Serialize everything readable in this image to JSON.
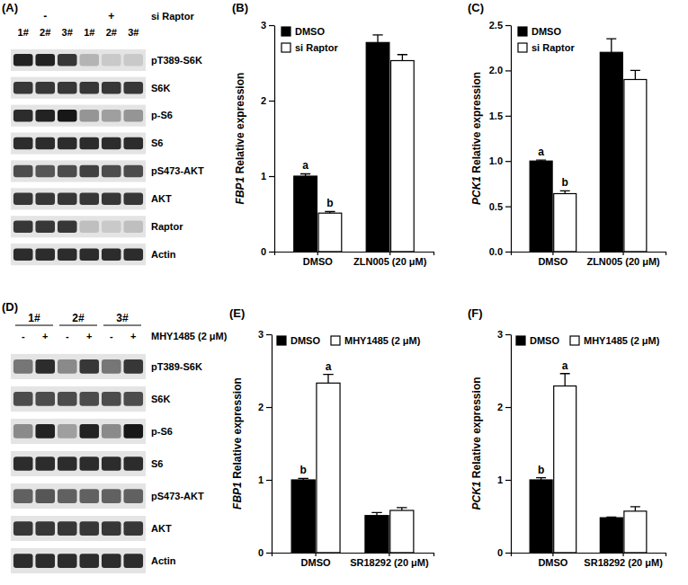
{
  "chart_data": [
    {
      "type": "western_blot",
      "title": "(A)",
      "treatment": "si Raptor",
      "groups": [
        "-",
        "+"
      ],
      "lanes": [
        "1#",
        "2#",
        "3#",
        "1#",
        "2#",
        "3#"
      ],
      "intensity_range": [
        0,
        1
      ],
      "rows": [
        {
          "name": "pT389-S6K",
          "intensities": [
            0.9,
            0.9,
            0.8,
            0.2,
            0.1,
            0.1
          ]
        },
        {
          "name": "S6K",
          "intensities": [
            0.8,
            0.8,
            0.8,
            0.8,
            0.8,
            0.8
          ]
        },
        {
          "name": "p-S6",
          "intensities": [
            0.85,
            0.9,
            0.95,
            0.35,
            0.3,
            0.35
          ]
        },
        {
          "name": "S6",
          "intensities": [
            0.85,
            0.85,
            0.85,
            0.85,
            0.85,
            0.85
          ]
        },
        {
          "name": "pS473-AKT",
          "intensities": [
            0.7,
            0.65,
            0.7,
            0.75,
            0.7,
            0.7
          ]
        },
        {
          "name": "AKT",
          "intensities": [
            0.8,
            0.8,
            0.8,
            0.8,
            0.8,
            0.8
          ]
        },
        {
          "name": "Raptor",
          "intensities": [
            0.8,
            0.8,
            0.8,
            0.15,
            0.1,
            0.15
          ]
        },
        {
          "name": "Actin",
          "intensities": [
            0.85,
            0.85,
            0.85,
            0.85,
            0.85,
            0.85
          ]
        }
      ]
    },
    {
      "type": "bar",
      "title": "(B)",
      "ylabel": "FBP1 Relative expression",
      "categories": [
        "DMSO",
        "ZLN005 (20 μM)"
      ],
      "series": [
        {
          "name": "DMSO",
          "color": "#000000",
          "values": [
            1.0,
            2.77
          ],
          "errors": [
            0.03,
            0.1
          ],
          "annotations": [
            "a",
            null
          ]
        },
        {
          "name": "si Raptor",
          "color": "#ffffff",
          "values": [
            0.51,
            2.53
          ],
          "errors": [
            0.02,
            0.08
          ],
          "annotations": [
            "b",
            null
          ]
        }
      ],
      "ylim": [
        0,
        3
      ],
      "yticks": [
        0,
        1,
        2,
        3
      ],
      "legend": "upper left"
    },
    {
      "type": "bar",
      "title": "(C)",
      "ylabel": "PCK1 Relative expression",
      "categories": [
        "DMSO",
        "ZLN005 (20 μM)"
      ],
      "series": [
        {
          "name": "DMSO",
          "color": "#000000",
          "values": [
            1.0,
            2.2
          ],
          "errors": [
            0.01,
            0.15
          ],
          "annotations": [
            "a",
            null
          ]
        },
        {
          "name": "si Raptor",
          "color": "#ffffff",
          "values": [
            0.64,
            1.9
          ],
          "errors": [
            0.03,
            0.1
          ],
          "annotations": [
            "b",
            null
          ]
        }
      ],
      "ylim": [
        0,
        2.5
      ],
      "yticks": [
        {
          "value": 0,
          "label": "0.0"
        },
        0.5,
        {
          "value": 1,
          "label": "1.0"
        },
        1.5,
        {
          "value": 2,
          "label": "2.0"
        },
        2.5
      ],
      "legend": "upper left"
    },
    {
      "type": "western_blot",
      "title": "(D)",
      "treatment": "MHY1485 (2 μM)",
      "groups": [
        "1#",
        "2#",
        "3#"
      ],
      "lanes": [
        "-",
        "+",
        "-",
        "+",
        "-",
        "+"
      ],
      "intensity_range": [
        0,
        1
      ],
      "rows": [
        {
          "name": "pT389-S6K",
          "intensities": [
            0.5,
            0.85,
            0.4,
            0.8,
            0.5,
            0.8
          ]
        },
        {
          "name": "S6K",
          "intensities": [
            0.7,
            0.7,
            0.7,
            0.7,
            0.7,
            0.7
          ]
        },
        {
          "name": "p-S6",
          "intensities": [
            0.4,
            0.9,
            0.3,
            0.9,
            0.4,
            0.95
          ]
        },
        {
          "name": "S6",
          "intensities": [
            0.85,
            0.85,
            0.85,
            0.85,
            0.85,
            0.85
          ]
        },
        {
          "name": "pS473-AKT",
          "intensities": [
            0.6,
            0.65,
            0.6,
            0.6,
            0.6,
            0.6
          ]
        },
        {
          "name": "AKT",
          "intensities": [
            0.8,
            0.8,
            0.8,
            0.8,
            0.8,
            0.8
          ]
        },
        {
          "name": "Actin",
          "intensities": [
            0.85,
            0.85,
            0.85,
            0.85,
            0.85,
            0.85
          ]
        }
      ]
    },
    {
      "type": "bar",
      "title": "(E)",
      "ylabel": "FBP1 Relative expression",
      "categories": [
        "DMSO",
        "SR18292 (20 μM)"
      ],
      "series": [
        {
          "name": "DMSO",
          "color": "#000000",
          "values": [
            1.0,
            0.51
          ],
          "errors": [
            0.02,
            0.04
          ],
          "annotations": [
            "b",
            null
          ]
        },
        {
          "name": "MHY1485 (2 μM)",
          "color": "#ffffff",
          "values": [
            2.33,
            0.58
          ],
          "errors": [
            0.12,
            0.04
          ],
          "annotations": [
            "a",
            null
          ]
        }
      ],
      "ylim": [
        0,
        3
      ],
      "yticks": [
        0,
        1,
        2,
        3
      ],
      "legend": "upper left"
    },
    {
      "type": "bar",
      "title": "(F)",
      "ylabel": "PCK1 Relative expression",
      "categories": [
        "DMSO",
        "SR18292 (20 μM)"
      ],
      "series": [
        {
          "name": "DMSO",
          "color": "#000000",
          "values": [
            1.0,
            0.48
          ],
          "errors": [
            0.03,
            0.01
          ],
          "annotations": [
            "b",
            null
          ]
        },
        {
          "name": "MHY1485 (2 μM)",
          "color": "#ffffff",
          "values": [
            2.29,
            0.57
          ],
          "errors": [
            0.17,
            0.06
          ],
          "annotations": [
            "a",
            null
          ]
        }
      ],
      "ylim": [
        0,
        3
      ],
      "yticks": [
        0,
        1,
        2,
        3
      ],
      "legend": "upper left"
    }
  ]
}
